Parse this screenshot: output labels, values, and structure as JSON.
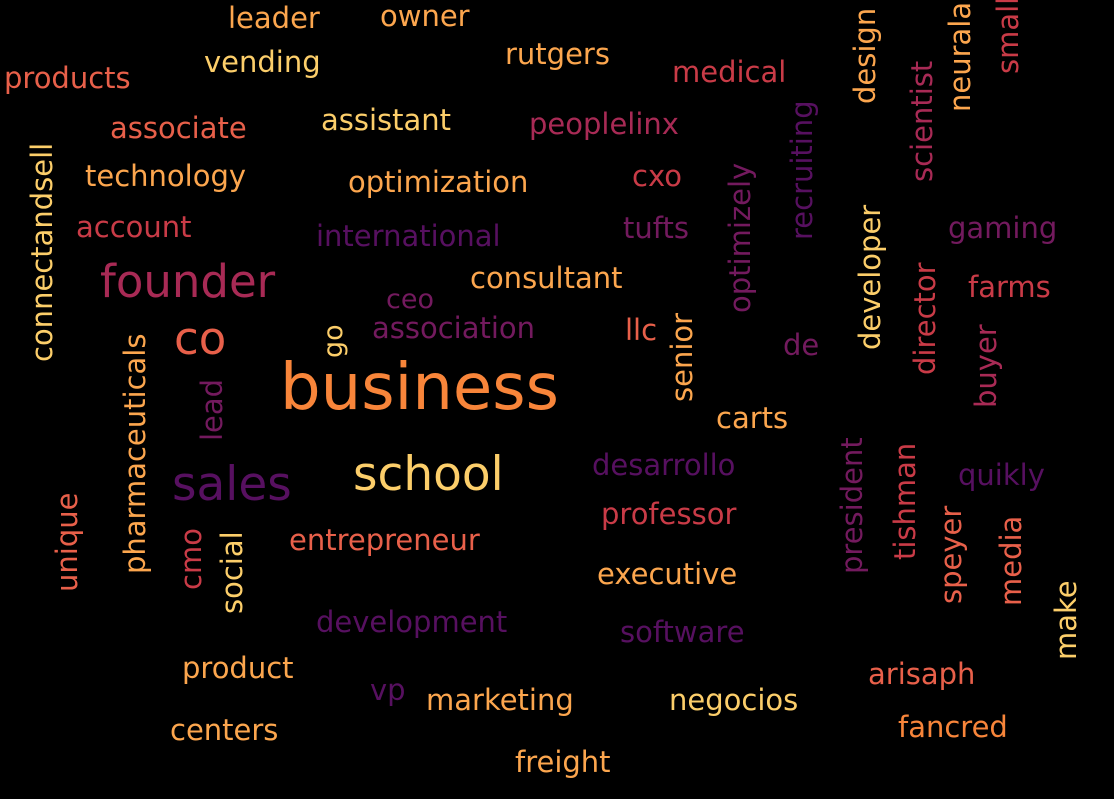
{
  "palette": {
    "background": "#000000",
    "yellow": "#fcce6a",
    "light_orange": "#fca64e",
    "orange": "#f8853a",
    "coral": "#e8604a",
    "red": "#c93b47",
    "crimson": "#a82a55",
    "magenta": "#731a5e",
    "purple": "#571060"
  },
  "words": [
    {
      "text": "leader",
      "color": "#fca64e"
    },
    {
      "text": "owner",
      "color": "#fca64e"
    },
    {
      "text": "products",
      "color": "#e8604a"
    },
    {
      "text": "vending",
      "color": "#fcce6a"
    },
    {
      "text": "rutgers",
      "color": "#fca64e"
    },
    {
      "text": "medical",
      "color": "#c93b47"
    },
    {
      "text": "design",
      "color": "#fca64e"
    },
    {
      "text": "neurala",
      "color": "#fca64e"
    },
    {
      "text": "small",
      "color": "#c93b47"
    },
    {
      "text": "associate",
      "color": "#e8604a"
    },
    {
      "text": "assistant",
      "color": "#fcce6a"
    },
    {
      "text": "peoplelinx",
      "color": "#a82a55"
    },
    {
      "text": "scientist",
      "color": "#a82a55"
    },
    {
      "text": "connectandsell",
      "color": "#fcce6a"
    },
    {
      "text": "technology",
      "color": "#fca64e"
    },
    {
      "text": "optimization",
      "color": "#fca64e"
    },
    {
      "text": "cxo",
      "color": "#c93b47"
    },
    {
      "text": "recruiting",
      "color": "#571060"
    },
    {
      "text": "account",
      "color": "#c93b47"
    },
    {
      "text": "international",
      "color": "#571060"
    },
    {
      "text": "tufts",
      "color": "#731a5e"
    },
    {
      "text": "optimizely",
      "color": "#731a5e"
    },
    {
      "text": "gaming",
      "color": "#731a5e"
    },
    {
      "text": "founder",
      "color": "#a82a55"
    },
    {
      "text": "consultant",
      "color": "#fca64e"
    },
    {
      "text": "developer",
      "color": "#fcce6a"
    },
    {
      "text": "farms",
      "color": "#c93b47"
    },
    {
      "text": "ceo",
      "color": "#731a5e"
    },
    {
      "text": "director",
      "color": "#c93b47"
    },
    {
      "text": "co",
      "color": "#e8604a"
    },
    {
      "text": "go",
      "color": "#fcce6a"
    },
    {
      "text": "association",
      "color": "#731a5e"
    },
    {
      "text": "llc",
      "color": "#e8604a"
    },
    {
      "text": "senior",
      "color": "#fca64e"
    },
    {
      "text": "de",
      "color": "#731a5e"
    },
    {
      "text": "buyer",
      "color": "#a82a55"
    },
    {
      "text": "pharmaceuticals",
      "color": "#fca64e"
    },
    {
      "text": "lead",
      "color": "#731a5e"
    },
    {
      "text": "business",
      "color": "#f8853a"
    },
    {
      "text": "carts",
      "color": "#fca64e"
    },
    {
      "text": "sales",
      "color": "#571060"
    },
    {
      "text": "school",
      "color": "#fcce6a"
    },
    {
      "text": "desarrollo",
      "color": "#571060"
    },
    {
      "text": "president",
      "color": "#731a5e"
    },
    {
      "text": "tishman",
      "color": "#c93b47"
    },
    {
      "text": "quikly",
      "color": "#571060"
    },
    {
      "text": "unique",
      "color": "#e8604a"
    },
    {
      "text": "cmo",
      "color": "#c93b47"
    },
    {
      "text": "social",
      "color": "#fcce6a"
    },
    {
      "text": "entrepreneur",
      "color": "#e8604a"
    },
    {
      "text": "professor",
      "color": "#c93b47"
    },
    {
      "text": "speyer",
      "color": "#e8604a"
    },
    {
      "text": "media",
      "color": "#e8604a"
    },
    {
      "text": "executive",
      "color": "#fca64e"
    },
    {
      "text": "make",
      "color": "#fcce6a"
    },
    {
      "text": "development",
      "color": "#571060"
    },
    {
      "text": "software",
      "color": "#571060"
    },
    {
      "text": "product",
      "color": "#fca64e"
    },
    {
      "text": "arisaph",
      "color": "#e8604a"
    },
    {
      "text": "vp",
      "color": "#571060"
    },
    {
      "text": "marketing",
      "color": "#fca64e"
    },
    {
      "text": "negocios",
      "color": "#fcce6a"
    },
    {
      "text": "centers",
      "color": "#fca64e"
    },
    {
      "text": "fancred",
      "color": "#f8853a"
    },
    {
      "text": "freight",
      "color": "#fca64e"
    }
  ]
}
